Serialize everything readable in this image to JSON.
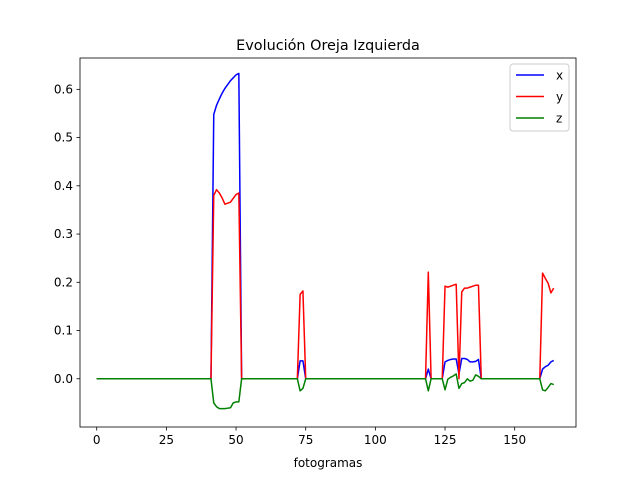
{
  "chart_data": {
    "type": "line",
    "title": "Evolución Oreja Izquierda",
    "xlabel": "fotogramas",
    "ylabel": "",
    "xlim": [
      -6,
      172
    ],
    "ylim": [
      -0.1,
      0.665
    ],
    "xticks": [
      0,
      25,
      50,
      75,
      100,
      125,
      150
    ],
    "yticks": [
      0.0,
      0.1,
      0.2,
      0.3,
      0.4,
      0.5,
      0.6
    ],
    "ytick_labels": [
      "0.0",
      "0.1",
      "0.2",
      "0.3",
      "0.4",
      "0.5",
      "0.6"
    ],
    "grid": false,
    "legend_position": "top-right",
    "series": [
      {
        "name": "x",
        "color": "#0000ff",
        "points": [
          [
            0,
            0
          ],
          [
            41,
            0
          ],
          [
            42,
            0.548
          ],
          [
            43,
            0.567
          ],
          [
            44,
            0.58
          ],
          [
            45,
            0.592
          ],
          [
            46,
            0.602
          ],
          [
            47,
            0.61
          ],
          [
            48,
            0.618
          ],
          [
            49,
            0.624
          ],
          [
            50,
            0.63
          ],
          [
            51,
            0.633
          ],
          [
            52,
            0
          ],
          [
            72,
            0
          ],
          [
            73,
            0.037
          ],
          [
            74,
            0.037
          ],
          [
            75,
            0
          ],
          [
            118,
            0
          ],
          [
            119,
            0.02
          ],
          [
            120,
            0
          ],
          [
            124,
            0
          ],
          [
            125,
            0.035
          ],
          [
            126,
            0.038
          ],
          [
            127,
            0.04
          ],
          [
            128,
            0.041
          ],
          [
            129,
            0.041
          ],
          [
            130,
            0.01
          ],
          [
            131,
            0.042
          ],
          [
            132,
            0.042
          ],
          [
            133,
            0.04
          ],
          [
            134,
            0.035
          ],
          [
            135,
            0.035
          ],
          [
            136,
            0.036
          ],
          [
            137,
            0.04
          ],
          [
            138,
            0
          ],
          [
            159,
            0
          ],
          [
            160,
            0.02
          ],
          [
            161,
            0.025
          ],
          [
            162,
            0.028
          ],
          [
            163,
            0.035
          ],
          [
            164,
            0.038
          ]
        ]
      },
      {
        "name": "y",
        "color": "#ff0000",
        "points": [
          [
            0,
            0
          ],
          [
            41,
            0
          ],
          [
            42,
            0.38
          ],
          [
            43,
            0.392
          ],
          [
            44,
            0.385
          ],
          [
            45,
            0.375
          ],
          [
            46,
            0.362
          ],
          [
            47,
            0.364
          ],
          [
            48,
            0.366
          ],
          [
            49,
            0.374
          ],
          [
            50,
            0.382
          ],
          [
            51,
            0.385
          ],
          [
            52,
            0
          ],
          [
            72,
            0
          ],
          [
            73,
            0.175
          ],
          [
            74,
            0.182
          ],
          [
            75,
            0
          ],
          [
            118,
            0
          ],
          [
            119,
            0.221
          ],
          [
            120,
            0
          ],
          [
            124,
            0
          ],
          [
            125,
            0.192
          ],
          [
            126,
            0.19
          ],
          [
            127,
            0.192
          ],
          [
            128,
            0.194
          ],
          [
            129,
            0.196
          ],
          [
            130,
            0
          ],
          [
            131,
            0.18
          ],
          [
            132,
            0.188
          ],
          [
            133,
            0.188
          ],
          [
            134,
            0.19
          ],
          [
            135,
            0.192
          ],
          [
            136,
            0.194
          ],
          [
            137,
            0.194
          ],
          [
            138,
            0
          ],
          [
            159,
            0
          ],
          [
            160,
            0.219
          ],
          [
            161,
            0.208
          ],
          [
            162,
            0.198
          ],
          [
            163,
            0.178
          ],
          [
            164,
            0.188
          ]
        ]
      },
      {
        "name": "z",
        "color": "#008000",
        "points": [
          [
            0,
            0
          ],
          [
            41,
            0
          ],
          [
            42,
            -0.05
          ],
          [
            43,
            -0.058
          ],
          [
            44,
            -0.062
          ],
          [
            45,
            -0.062
          ],
          [
            46,
            -0.062
          ],
          [
            47,
            -0.061
          ],
          [
            48,
            -0.06
          ],
          [
            49,
            -0.05
          ],
          [
            50,
            -0.048
          ],
          [
            51,
            -0.048
          ],
          [
            52,
            0
          ],
          [
            72,
            0
          ],
          [
            73,
            -0.025
          ],
          [
            74,
            -0.02
          ],
          [
            75,
            0
          ],
          [
            118,
            0
          ],
          [
            119,
            -0.025
          ],
          [
            120,
            0
          ],
          [
            124,
            0
          ],
          [
            125,
            -0.023
          ],
          [
            126,
            -0.001
          ],
          [
            127,
            0.003
          ],
          [
            128,
            0.006
          ],
          [
            129,
            0.01
          ],
          [
            130,
            -0.02
          ],
          [
            131,
            -0.01
          ],
          [
            132,
            -0.008
          ],
          [
            133,
            0
          ],
          [
            134,
            -0.005
          ],
          [
            135,
            -0.003
          ],
          [
            136,
            0.008
          ],
          [
            137,
            0.005
          ],
          [
            138,
            0
          ],
          [
            159,
            0
          ],
          [
            160,
            -0.023
          ],
          [
            161,
            -0.025
          ],
          [
            162,
            -0.018
          ],
          [
            163,
            -0.01
          ],
          [
            164,
            -0.012
          ]
        ]
      }
    ]
  }
}
